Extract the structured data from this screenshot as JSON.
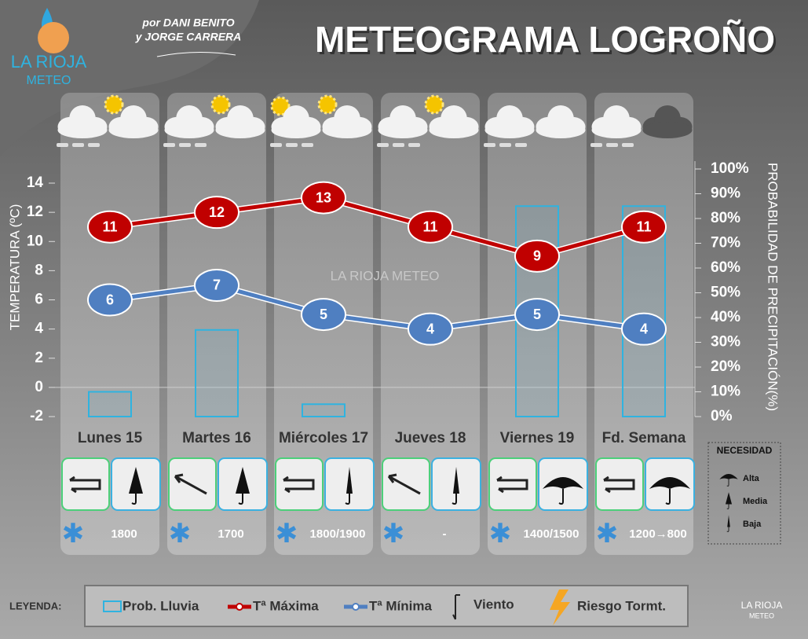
{
  "chart_data": {
    "type": "line",
    "title": "METEOGRAMA LOGROÑO",
    "credits": [
      "por DANI BENITO",
      "y JORGE CARRERA"
    ],
    "logo": [
      "LA RIOJA",
      "METEO"
    ],
    "watermark": "LA RIOJA METEO",
    "y_label": "TEMPERATURA (ºC)",
    "y2_label": "PROBABILIDAD DE PRECIPITACIÓN(%)",
    "categories": [
      "Lunes 15",
      "Martes 16",
      "Miércoles 17",
      "Jueves 18",
      "Viernes 19",
      "Fd. Semana"
    ],
    "series": [
      {
        "name": "Tª Máxima",
        "color": "#c00000",
        "values": [
          11,
          12,
          13,
          11,
          9,
          11
        ]
      },
      {
        "name": "Tª Mínima",
        "color": "#4f7fc1",
        "values": [
          6,
          7,
          5,
          4,
          5,
          4
        ]
      },
      {
        "name": "Prob. Lluvia",
        "color": "#2fb3e0",
        "axis": "y2",
        "type": "bar",
        "values": [
          10,
          35,
          5,
          0,
          85,
          85
        ]
      }
    ],
    "snow_levels": [
      "1800",
      "1700",
      "1800/1900",
      "-",
      "1400/1500",
      "1200→800"
    ],
    "ylim": [
      -2,
      14
    ],
    "yticks": [
      -2,
      0,
      2,
      4,
      6,
      8,
      10,
      12,
      14
    ],
    "y2lim": [
      0,
      100
    ],
    "y2ticks": [
      {
        "value": 0,
        "label": "0%"
      },
      {
        "value": 10,
        "label": "10%"
      },
      {
        "value": 20,
        "label": "20%"
      },
      {
        "value": 30,
        "label": "30%"
      },
      {
        "value": 40,
        "label": "40%"
      },
      {
        "value": 50,
        "label": "50%"
      },
      {
        "value": 60,
        "label": "60%"
      },
      {
        "value": 70,
        "label": "70%"
      },
      {
        "value": 80,
        "label": "80%"
      },
      {
        "value": 90,
        "label": "90%"
      },
      {
        "value": 100,
        "label": "100%"
      }
    ],
    "legend_title": "LEYENDA:",
    "legend_extra": [
      "Viento",
      "Riesgo Tormt."
    ],
    "need_title": "NECESIDAD",
    "need_levels": [
      "Alta",
      "Media",
      "Baja"
    ],
    "footer_logo": [
      "LA RIOJA",
      "METEO"
    ]
  }
}
